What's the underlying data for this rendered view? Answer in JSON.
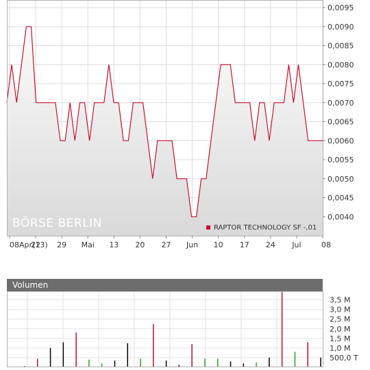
{
  "chart_data": [
    {
      "type": "line",
      "watermark": "BÖRSE BERLIN",
      "legend": {
        "label": "RAPTOR TECHNOLOGY SF -,01",
        "color": "#c8102e",
        "placement": "bottom-right"
      },
      "x_tick_labels": [
        "08Apr(13)",
        "22",
        "29",
        "Mai",
        "13",
        "20",
        "27",
        "Jun",
        "10",
        "17",
        "24",
        "Jul",
        "08"
      ],
      "y_tick_labels": [
        "0,0095",
        "0,0090",
        "0,0085",
        "0,0080",
        "0,0075",
        "0,0070",
        "0,0065",
        "0,0060",
        "0,0055",
        "0,0050",
        "0,0045",
        "0,0040"
      ],
      "ylim": [
        0.0035,
        0.0097
      ],
      "grid": true,
      "line_color": "#c8102e",
      "series": [
        {
          "values": [
            0.007,
            0.008,
            0.007,
            0.008,
            0.009,
            0.009,
            0.007,
            0.007,
            0.007,
            0.007,
            0.007,
            0.006,
            0.006,
            0.007,
            0.006,
            0.007,
            0.007,
            0.006,
            0.007,
            0.007,
            0.007,
            0.008,
            0.007,
            0.007,
            0.006,
            0.006,
            0.007,
            0.007,
            0.007,
            0.006,
            0.005,
            0.006,
            0.006,
            0.006,
            0.006,
            0.005,
            0.005,
            0.005,
            0.004,
            0.004,
            0.005,
            0.005,
            0.006,
            0.007,
            0.008,
            0.008,
            0.008,
            0.007,
            0.007,
            0.007,
            0.007,
            0.006,
            0.007,
            0.007,
            0.006,
            0.007,
            0.007,
            0.007,
            0.008,
            0.007,
            0.008,
            0.007,
            0.006,
            0.006,
            0.006,
            0.006
          ]
        }
      ]
    },
    {
      "type": "bar",
      "title": "Volumen",
      "y_tick_labels": [
        "3,5 M",
        "3,0 M",
        "2,5 M",
        "2,0 M",
        "1,5 M",
        "1,0 M",
        "500,0 T"
      ],
      "ylim": [
        0,
        3950000
      ],
      "grid": true,
      "colors": {
        "up": "#2e9b2e",
        "down": "#b3122e",
        "flat": "#000000"
      },
      "bars": [
        {
          "value": 60000,
          "dir": "flat"
        },
        {
          "value": 450000,
          "dir": "down"
        },
        {
          "value": 1000000,
          "dir": "flat"
        },
        {
          "value": 1300000,
          "dir": "flat"
        },
        {
          "value": 1800000,
          "dir": "down"
        },
        {
          "value": 400000,
          "dir": "up"
        },
        {
          "value": 200000,
          "dir": "up"
        },
        {
          "value": 350000,
          "dir": "flat"
        },
        {
          "value": 1250000,
          "dir": "flat"
        },
        {
          "value": 450000,
          "dir": "up"
        },
        {
          "value": 2250000,
          "dir": "down"
        },
        {
          "value": 350000,
          "dir": "flat"
        },
        {
          "value": 120000,
          "dir": "flat"
        },
        {
          "value": 1200000,
          "dir": "down"
        },
        {
          "value": 450000,
          "dir": "up"
        },
        {
          "value": 450000,
          "dir": "up"
        },
        {
          "value": 300000,
          "dir": "flat"
        },
        {
          "value": 200000,
          "dir": "flat"
        },
        {
          "value": 250000,
          "dir": "up"
        },
        {
          "value": 500000,
          "dir": "flat"
        },
        {
          "value": 3950000,
          "dir": "down"
        },
        {
          "value": 800000,
          "dir": "up"
        },
        {
          "value": 1300000,
          "dir": "down"
        },
        {
          "value": 500000,
          "dir": "flat"
        }
      ]
    }
  ]
}
